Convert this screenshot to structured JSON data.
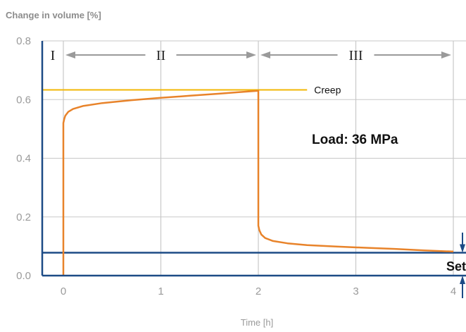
{
  "chart_data": {
    "type": "line",
    "title": "",
    "xlabel": "Time [h]",
    "ylabel": "Change in volume [%]",
    "xlim": [
      -0.2,
      4.1
    ],
    "ylim": [
      0,
      0.8
    ],
    "x_ticks": [
      "0",
      "1",
      "2",
      "3",
      "4"
    ],
    "y_ticks": [
      "0.0",
      "0.2",
      "0.4",
      "0.6",
      "0.8"
    ],
    "grid": true,
    "series": [
      {
        "color": "#e8832a",
        "x": [
          0,
          0,
          0.01,
          0.02,
          0.05,
          0.1,
          0.2,
          0.4,
          0.7,
          1.0,
          1.3,
          1.6,
          1.8,
          2.0,
          2.0,
          2.01,
          2.03,
          2.07,
          2.15,
          2.3,
          2.5,
          2.8,
          3.1,
          3.4,
          3.7,
          4.0
        ],
        "y": [
          0,
          0.52,
          0.535,
          0.545,
          0.558,
          0.568,
          0.578,
          0.588,
          0.598,
          0.606,
          0.613,
          0.62,
          0.625,
          0.63,
          0.17,
          0.155,
          0.14,
          0.128,
          0.118,
          0.11,
          0.104,
          0.099,
          0.095,
          0.091,
          0.086,
          0.082
        ]
      }
    ],
    "reference_lines": {
      "creep": {
        "label": "Creep",
        "y": 0.633,
        "x_end": 2.5,
        "color": "#f2b705"
      },
      "set": {
        "label": "Set",
        "y": 0.078,
        "color": "#1d4b86"
      },
      "axis_color": "#1d4b86"
    },
    "annotations": {
      "load": "Load: 36 MPa",
      "phases": [
        "I",
        "II",
        "III"
      ]
    }
  }
}
